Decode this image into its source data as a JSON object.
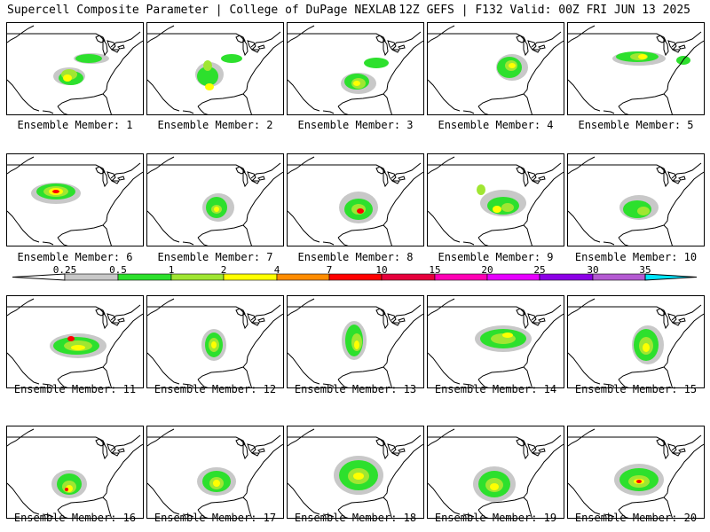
{
  "header": {
    "title": "Supercell Composite Parameter | College of DuPage NEXLAB",
    "run_info": "12Z GEFS | F132 Valid: 00Z FRI JUN 13 2025"
  },
  "colorbar": {
    "labels": [
      "0.25",
      "0.5",
      "1",
      "2",
      "4",
      "7",
      "10",
      "15",
      "20",
      "25",
      "30",
      "35"
    ],
    "colors": [
      "#c8c8c8",
      "#2de02d",
      "#a0e632",
      "#ffff00",
      "#ff8c00",
      "#ff0000",
      "#e6003c",
      "#ff00b4",
      "#e600ff",
      "#8c00e6",
      "#b45ad2",
      "#00e6ff"
    ]
  },
  "members": [
    "Ensemble Member: 1",
    "Ensemble Member: 2",
    "Ensemble Member: 3",
    "Ensemble Member: 4",
    "Ensemble Member: 5",
    "Ensemble Member: 6",
    "Ensemble Member: 7",
    "Ensemble Member: 8",
    "Ensemble Member: 9",
    "Ensemble Member: 10",
    "Ensemble Member: 11",
    "Ensemble Member: 12",
    "Ensemble Member: 13",
    "Ensemble Member: 14",
    "Ensemble Member: 15",
    "Ensemble Member: 16",
    "Ensemble Member: 17",
    "Ensemble Member: 18",
    "Ensemble Member: 19",
    "Ensemble Member: 20"
  ]
}
